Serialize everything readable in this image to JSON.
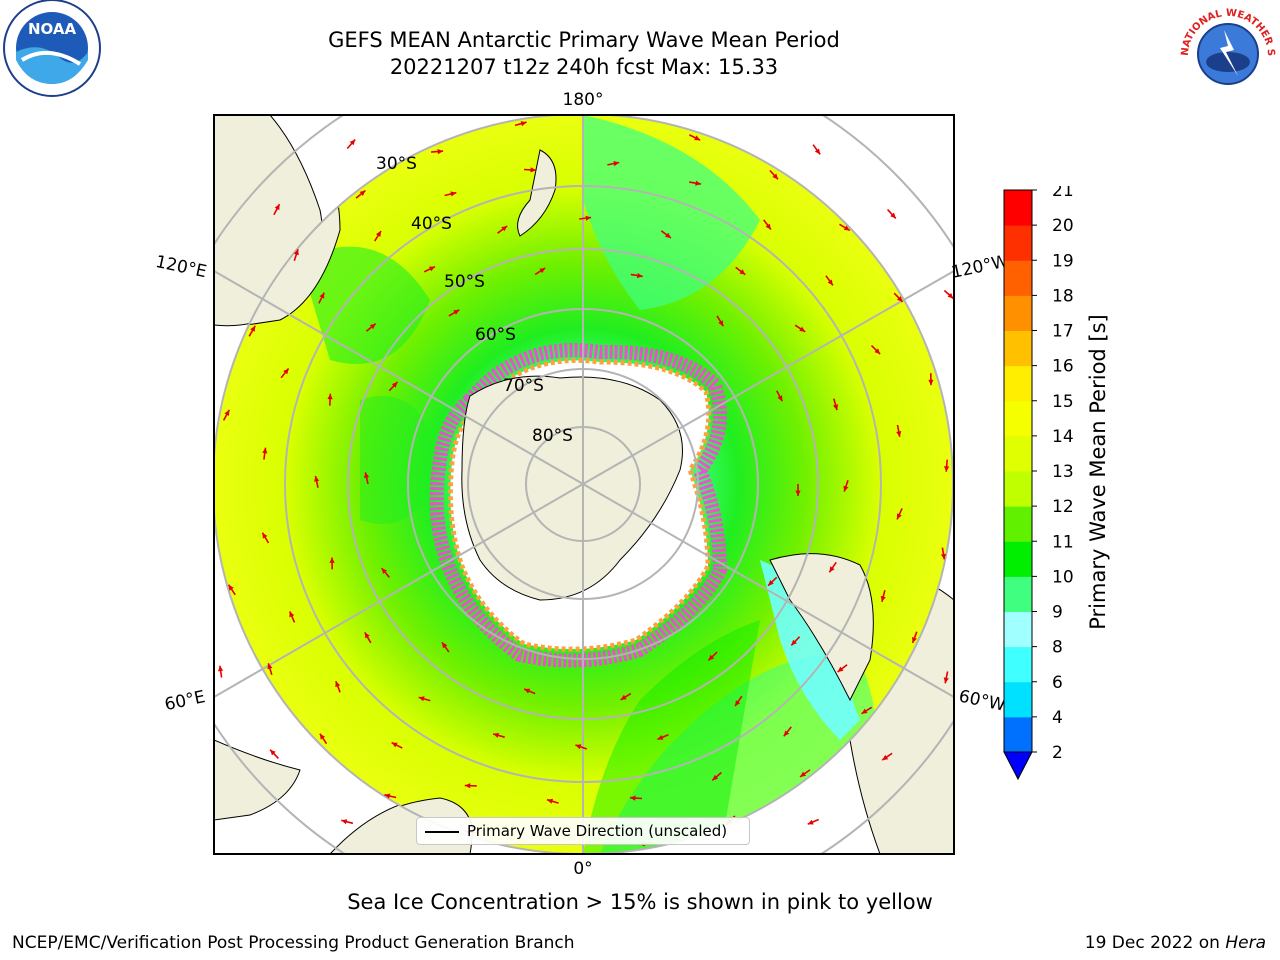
{
  "header": {
    "title_line1": "GEFS MEAN Antarctic Primary Wave Mean Period",
    "title_line2": "20221207 t12z 240h fcst   Max: 15.33"
  },
  "logos": {
    "noaa_text": "NOAA",
    "nws_text": "NATIONAL WEATHER SERVICE"
  },
  "map": {
    "projection": "south-polar-stereographic",
    "meridian_labels": {
      "top": "180°",
      "bottom": "0°",
      "upper_left": "120°E",
      "upper_right": "120°W",
      "lower_left": "60°E",
      "lower_right": "60°W"
    },
    "latitude_labels": [
      "30°S",
      "40°S",
      "50°S",
      "60°S",
      "70°S",
      "80°S"
    ],
    "colors": {
      "land": "#efefdb",
      "ice_edge": "#ff40e0",
      "arrows": "#e60000",
      "gridlines": "#b4b4b4"
    }
  },
  "legend": {
    "label": "Primary Wave Direction (unscaled)"
  },
  "colorbar": {
    "label": "Primary Wave Mean Period [s]",
    "ticks": [
      "2",
      "4",
      "6",
      "8",
      "9",
      "10",
      "11",
      "12",
      "13",
      "14",
      "15",
      "16",
      "17",
      "18",
      "19",
      "20",
      "21"
    ],
    "colors": [
      "#0070ff",
      "#00e0ff",
      "#40ffff",
      "#a0ffff",
      "#40ff80",
      "#00ee00",
      "#60f000",
      "#c0ff00",
      "#e0ff00",
      "#f5ff00",
      "#ffee00",
      "#ffc000",
      "#ff9000",
      "#ff6000",
      "#ff3000",
      "#ff0000"
    ],
    "extend_color": "#0000ff"
  },
  "subtitle": "Sea Ice Concentration > 15% is shown in pink to yellow",
  "footer": {
    "left": "NCEP/EMC/Verification Post Processing Product Generation Branch",
    "right_date": "19 Dec 2022 on",
    "right_host": "Hera"
  }
}
